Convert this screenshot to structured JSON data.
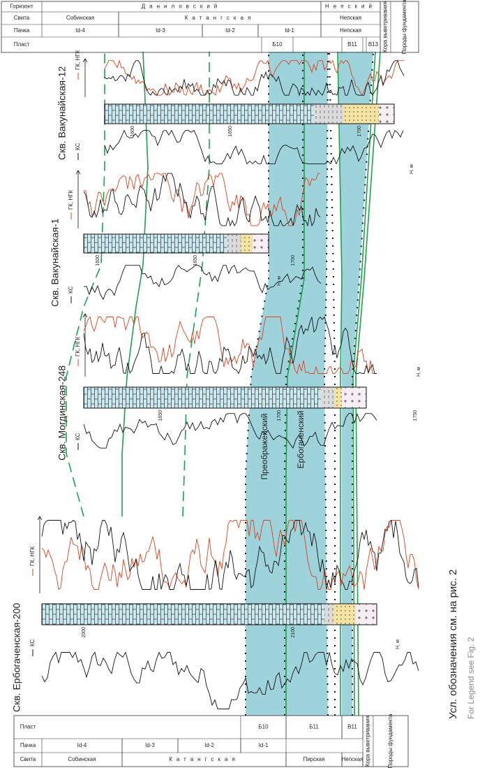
{
  "wells": [
    {
      "name": "Скв. Ербогаченская-200",
      "ks_label": "КС",
      "gk_label": "ГК, НГК",
      "depth_labels": [
        "2000",
        "2100"
      ],
      "h_label": "H, м"
    },
    {
      "name": "Скв. Могдинская-248",
      "ks_label": "КС",
      "gk_label": "ГК, НГК",
      "depth_labels": [
        "1650",
        "1700",
        "1750"
      ],
      "h_label": "H, м"
    },
    {
      "name": "Скв. Вакунайская-1",
      "ks_label": "КС",
      "gk_label": "ГК, НГК",
      "depth_labels": [
        "1600",
        "1650",
        "1700"
      ],
      "h_label": "H, м"
    },
    {
      "name": "Скв. Вакунайская-12",
      "ks_label": "КС",
      "gk_label": "ГК, НГК",
      "depth_labels": [
        "1600",
        "1650",
        "1700"
      ],
      "h_label": "H, м"
    }
  ],
  "left_table": {
    "headers": [
      "Свита",
      "Пачка",
      "Пласт"
    ],
    "svita": [
      "Собинская",
      "Катангская",
      "Пирская",
      "Непская"
    ],
    "pachka": [
      "Id-4",
      "Id-3",
      "Id-2",
      "Id-1"
    ],
    "plast": [
      "Б10",
      "Б11",
      "В11"
    ],
    "kora": "Кора выветривания",
    "porody": "Породы фундамента"
  },
  "right_table": {
    "headers": [
      "Горизонт",
      "Свита",
      "Пачка",
      "Пласт"
    ],
    "gorizont": [
      "Даниловский",
      "Непский"
    ],
    "svita": [
      "Собинская",
      "Катангская",
      "Непская"
    ],
    "pachka": [
      "Id-4",
      "Id-3",
      "Id-2",
      "Id-1",
      "Непская"
    ],
    "plast": [
      "Б10",
      "В11",
      "В13"
    ],
    "kora": "Кора выветривания",
    "porody": "Породы фундамента"
  },
  "bands": [
    "Преображенский",
    "Ербогаченский"
  ],
  "caption": "Усл. обозначения см. на рис. 2",
  "caption_en": "For Legend see Fig. 2"
}
